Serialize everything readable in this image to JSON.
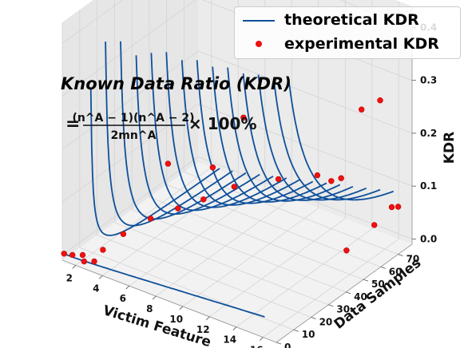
{
  "chart_data": {
    "type": "line",
    "annotation": {
      "title": "Known Data Ratio (KDR)",
      "formula_equals": "=",
      "formula_numerator": "(n^A − 1)(n^A − 2)",
      "formula_denominator": "2mn^A",
      "formula_suffix": "× 100%"
    },
    "xlabel": "Victim Feature",
    "ylabel": "Data Samples",
    "zlabel": "KDR",
    "x_ticks": [
      "2",
      "4",
      "6",
      "8",
      "10",
      "12",
      "14",
      "16"
    ],
    "y_ticks": [
      "0",
      "10",
      "20",
      "30",
      "40",
      "50",
      "60",
      "70"
    ],
    "z_ticks": [
      "0.0",
      "0.1",
      "0.2",
      "0.3",
      "0.4"
    ],
    "xlim": [
      1,
      17
    ],
    "ylim": [
      0,
      78
    ],
    "zlim": [
      -0.01,
      0.44
    ],
    "grid": true,
    "legend_position": "top-right",
    "series": [
      {
        "name": "theoretical KDR",
        "kind": "line",
        "color": "#0e4f9a",
        "curves": [
          {
            "x": 3,
            "m_range": [
              1,
              75
            ],
            "curve_type": "kdr"
          },
          {
            "x": 4,
            "m_range": [
              1,
              75
            ],
            "curve_type": "kdr"
          },
          {
            "x": 5,
            "m_range": [
              1,
              75
            ],
            "curve_type": "kdr"
          },
          {
            "x": 6,
            "m_range": [
              1,
              75
            ],
            "curve_type": "kdr"
          },
          {
            "x": 7,
            "m_range": [
              1,
              75
            ],
            "curve_type": "kdr"
          },
          {
            "x": 8,
            "m_range": [
              1,
              75
            ],
            "curve_type": "kdr"
          },
          {
            "x": 9,
            "m_range": [
              1,
              75
            ],
            "curve_type": "kdr"
          },
          {
            "x": 10,
            "m_range": [
              1,
              75
            ],
            "curve_type": "kdr"
          },
          {
            "x": 11,
            "m_range": [
              1,
              75
            ],
            "curve_type": "kdr"
          },
          {
            "x": 12,
            "m_range": [
              1,
              75
            ],
            "curve_type": "kdr"
          },
          {
            "x": 13,
            "m_range": [
              1,
              75
            ],
            "curve_type": "kdr"
          },
          {
            "x": 14,
            "m_range": [
              1,
              75
            ],
            "curve_type": "kdr"
          },
          {
            "x": 15,
            "m_range": [
              1,
              75
            ],
            "curve_type": "kdr"
          },
          {
            "x": 16,
            "m_range": [
              1,
              75
            ],
            "curve_type": "kdr"
          }
        ],
        "base_curve": {
          "m": 1,
          "x_range": [
            1,
            16
          ]
        }
      },
      {
        "name": "experimental KDR",
        "kind": "scatter",
        "color": "#ee1111",
        "points": [
          {
            "x": 1,
            "y": 1,
            "z": 0.0
          },
          {
            "x": 1.5,
            "y": 2,
            "z": 0.0
          },
          {
            "x": 2,
            "y": 4,
            "z": 0.0
          },
          {
            "x": 2.5,
            "y": 1,
            "z": 0.0
          },
          {
            "x": 3,
            "y": 3,
            "z": 0.0
          },
          {
            "x": 3,
            "y": 8,
            "z": 0.01
          },
          {
            "x": 4,
            "y": 12,
            "z": 0.04
          },
          {
            "x": 5,
            "y": 20,
            "z": 0.06
          },
          {
            "x": 6,
            "y": 28,
            "z": 0.07
          },
          {
            "x": 7,
            "y": 35,
            "z": 0.08
          },
          {
            "x": 5,
            "y": 30,
            "z": 0.14
          },
          {
            "x": 6,
            "y": 48,
            "z": 0.1
          },
          {
            "x": 7,
            "y": 58,
            "z": 0.18
          },
          {
            "x": 8,
            "y": 45,
            "z": 0.09
          },
          {
            "x": 10,
            "y": 55,
            "z": 0.1
          },
          {
            "x": 12,
            "y": 70,
            "z": 0.08
          },
          {
            "x": 12,
            "y": 62,
            "z": 0.11
          },
          {
            "x": 13,
            "y": 68,
            "z": 0.1
          },
          {
            "x": 14,
            "y": 72,
            "z": 0.23
          },
          {
            "x": 15,
            "y": 75,
            "z": 0.25
          },
          {
            "x": 16,
            "y": 48,
            "z": 0.04
          },
          {
            "x": 16,
            "y": 64,
            "z": 0.05
          },
          {
            "x": 16,
            "y": 74,
            "z": 0.06
          },
          {
            "x": 17,
            "y": 70,
            "z": 0.08
          }
        ]
      }
    ]
  }
}
